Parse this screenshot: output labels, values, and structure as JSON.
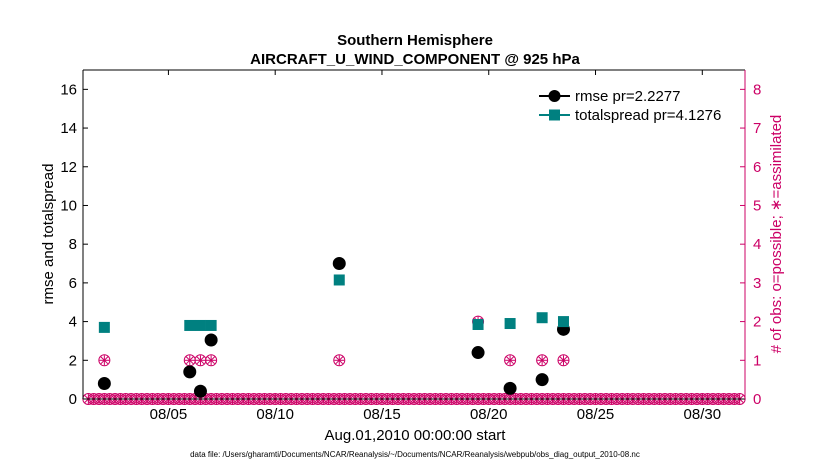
{
  "chart_data": {
    "type": "scatter",
    "title": "Southern Hemisphere",
    "subtitle": "AIRCRAFT_U_WIND_COMPONENT @ 925 hPa",
    "xlabel": "Aug.01,2010 00:00:00 start",
    "ylabel_left": "rmse and totalspread",
    "ylabel_right": "# of obs: o=possible; ∗=assimilated",
    "xlim": [
      1,
      32
    ],
    "ylim_left": [
      0,
      17
    ],
    "ylim_right": [
      0,
      8.5
    ],
    "x_ticks": [
      {
        "value": 5,
        "label": "08/05"
      },
      {
        "value": 10,
        "label": "08/10"
      },
      {
        "value": 15,
        "label": "08/15"
      },
      {
        "value": 20,
        "label": "08/20"
      },
      {
        "value": 25,
        "label": "08/25"
      },
      {
        "value": 30,
        "label": "08/30"
      }
    ],
    "y_ticks_left": [
      0,
      2,
      4,
      6,
      8,
      10,
      12,
      14,
      16
    ],
    "y_ticks_right": [
      0,
      1,
      2,
      3,
      4,
      5,
      6,
      7,
      8
    ],
    "series": [
      {
        "name": "rmse",
        "legend": "rmse pr=2.2277",
        "color": "#000000",
        "marker": "circle",
        "points": [
          [
            2.0,
            0.8
          ],
          [
            6.0,
            1.4
          ],
          [
            6.5,
            0.4
          ],
          [
            7.0,
            3.05
          ],
          [
            13.0,
            7.0
          ],
          [
            19.5,
            2.4
          ],
          [
            21.0,
            0.55
          ],
          [
            22.5,
            1.0
          ],
          [
            23.5,
            3.6
          ]
        ]
      },
      {
        "name": "totalspread",
        "legend": "totalspread pr=4.1276",
        "color": "#008080",
        "marker": "square",
        "points": [
          [
            2.0,
            3.7
          ],
          [
            6.0,
            3.8
          ],
          [
            6.5,
            3.8
          ],
          [
            7.0,
            3.8
          ],
          [
            13.0,
            6.15
          ],
          [
            19.5,
            3.85
          ],
          [
            21.0,
            3.9
          ],
          [
            22.5,
            4.2
          ],
          [
            23.5,
            4.0
          ]
        ]
      }
    ],
    "obs_counts": {
      "color": "#cc0066",
      "x_start": 1.25,
      "x_step": 0.25,
      "x_end": 31.75,
      "nonzero": [
        {
          "x": 2.0,
          "possible": 1,
          "assimilated": 1
        },
        {
          "x": 6.0,
          "possible": 1,
          "assimilated": 1
        },
        {
          "x": 6.5,
          "possible": 1,
          "assimilated": 1
        },
        {
          "x": 7.0,
          "possible": 1,
          "assimilated": 1
        },
        {
          "x": 13.0,
          "possible": 1,
          "assimilated": 1
        },
        {
          "x": 19.5,
          "possible": 2,
          "assimilated": 2
        },
        {
          "x": 21.0,
          "possible": 1,
          "assimilated": 1
        },
        {
          "x": 22.5,
          "possible": 1,
          "assimilated": 1
        },
        {
          "x": 23.5,
          "possible": 1,
          "assimilated": 1
        }
      ]
    },
    "legend_position": "top-right",
    "footnote": "data file: /Users/gharamti/Documents/NCAR/Reanalysis/~/Documents/NCAR/Reanalysis/webpub/obs_diag_output_2010-08.nc"
  }
}
